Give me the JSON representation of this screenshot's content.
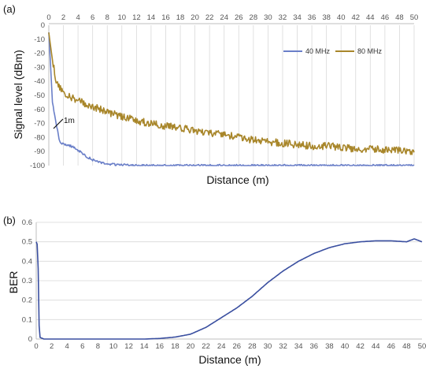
{
  "chart_data": [
    {
      "panel_label": "(a)",
      "type": "line",
      "xlabel": "Distance  (m)",
      "ylabel": "Signal level (dBm)",
      "xlim": [
        0,
        50
      ],
      "ylim": [
        -100,
        0
      ],
      "x_ticks": [
        0,
        2,
        4,
        6,
        8,
        10,
        12,
        14,
        16,
        18,
        20,
        22,
        24,
        26,
        28,
        30,
        32,
        34,
        36,
        38,
        40,
        42,
        44,
        46,
        48,
        50
      ],
      "y_ticks": [
        0,
        -10,
        -20,
        -30,
        -40,
        -50,
        -60,
        -70,
        -80,
        -90,
        -100
      ],
      "grid": "vertical",
      "x_axis_position": "top",
      "legend_position": "top-right",
      "annotation": "1m",
      "series": [
        {
          "name": "40 MHz",
          "color": "#6a7fc8",
          "x": [
            0,
            0.5,
            1,
            1.5,
            2,
            3,
            4,
            5,
            6,
            7,
            8,
            10,
            12,
            15,
            20,
            30,
            40,
            50
          ],
          "values": [
            -5,
            -55,
            -70,
            -83,
            -85,
            -86,
            -89,
            -93,
            -96,
            -98,
            -99,
            -99.5,
            -100,
            -100,
            -100,
            -100,
            -100,
            -100
          ]
        },
        {
          "name": "80 MHz",
          "color": "#a8862a",
          "x": [
            0,
            0.5,
            1,
            2,
            4,
            6,
            8,
            10,
            12,
            14,
            16,
            18,
            20,
            22,
            24,
            26,
            28,
            30,
            32,
            34,
            36,
            38,
            40,
            42,
            44,
            46,
            48,
            50
          ],
          "values": [
            -5,
            -25,
            -40,
            -48,
            -54,
            -58,
            -62,
            -65,
            -68,
            -70,
            -72,
            -73,
            -75,
            -77,
            -78,
            -80,
            -82,
            -83,
            -84,
            -85,
            -86,
            -86,
            -87,
            -88,
            -88,
            -89,
            -89,
            -90
          ]
        }
      ]
    },
    {
      "panel_label": "(b)",
      "type": "line",
      "xlabel": "Distance (m)",
      "ylabel": "BER",
      "xlim": [
        0,
        50
      ],
      "ylim": [
        0,
        0.6
      ],
      "x_ticks": [
        0,
        2,
        4,
        6,
        8,
        10,
        12,
        14,
        16,
        18,
        20,
        22,
        24,
        26,
        28,
        30,
        32,
        34,
        36,
        38,
        40,
        42,
        44,
        46,
        48,
        50
      ],
      "y_ticks": [
        0,
        0.1,
        0.2,
        0.3,
        0.4,
        0.5,
        0.6
      ],
      "grid": "horizontal",
      "series": [
        {
          "color": "#3a4fa0",
          "x": [
            0,
            0.2,
            0.4,
            1,
            5,
            10,
            14,
            16,
            18,
            20,
            22,
            24,
            26,
            28,
            30,
            32,
            34,
            36,
            38,
            40,
            42,
            44,
            46,
            48,
            49,
            50
          ],
          "values": [
            0.5,
            0.48,
            0.01,
            0,
            0,
            0,
            0,
            0.003,
            0.01,
            0.025,
            0.06,
            0.11,
            0.16,
            0.22,
            0.29,
            0.35,
            0.4,
            0.44,
            0.47,
            0.49,
            0.5,
            0.505,
            0.505,
            0.5,
            0.515,
            0.5
          ]
        }
      ]
    }
  ]
}
